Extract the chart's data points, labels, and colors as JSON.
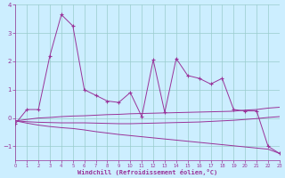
{
  "x": [
    0,
    1,
    2,
    3,
    4,
    5,
    6,
    7,
    8,
    9,
    10,
    11,
    12,
    13,
    14,
    15,
    16,
    17,
    18,
    19,
    20,
    21,
    22,
    23
  ],
  "main_line": [
    -0.2,
    0.3,
    0.3,
    2.2,
    3.65,
    3.25,
    1.0,
    0.8,
    0.6,
    0.55,
    0.9,
    0.05,
    2.05,
    0.2,
    2.1,
    1.5,
    1.4,
    1.2,
    1.4,
    0.3,
    0.25,
    0.25,
    -1.0,
    -1.25
  ],
  "trend_flat": [
    -0.1,
    -0.05,
    0.0,
    0.02,
    0.05,
    0.07,
    0.08,
    0.1,
    0.12,
    0.13,
    0.15,
    0.16,
    0.17,
    0.18,
    0.19,
    0.2,
    0.21,
    0.22,
    0.23,
    0.24,
    0.28,
    0.3,
    0.35,
    0.38
  ],
  "trend_down_steep": [
    -0.1,
    -0.18,
    -0.25,
    -0.3,
    -0.34,
    -0.37,
    -0.42,
    -0.48,
    -0.53,
    -0.58,
    -0.62,
    -0.66,
    -0.7,
    -0.74,
    -0.78,
    -0.82,
    -0.86,
    -0.9,
    -0.94,
    -0.98,
    -1.02,
    -1.06,
    -1.1,
    -1.25
  ],
  "trend_slight_down": [
    -0.1,
    -0.13,
    -0.15,
    -0.16,
    -0.17,
    -0.17,
    -0.17,
    -0.18,
    -0.19,
    -0.2,
    -0.2,
    -0.19,
    -0.18,
    -0.17,
    -0.16,
    -0.15,
    -0.14,
    -0.12,
    -0.1,
    -0.08,
    -0.05,
    -0.02,
    0.02,
    0.05
  ],
  "line_color": "#993399",
  "bg_color": "#cceeff",
  "grid_color": "#99cccc",
  "xlabel": "Windchill (Refroidissement éolien,°C)",
  "ylim": [
    -1.5,
    4.0
  ],
  "xlim": [
    0,
    23
  ]
}
